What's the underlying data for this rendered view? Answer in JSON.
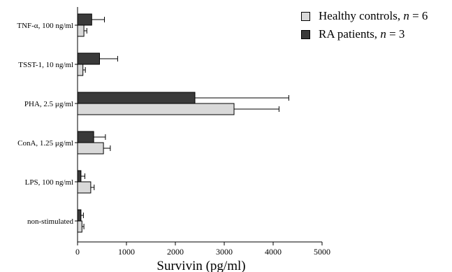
{
  "chart_data": {
    "type": "bar",
    "orientation": "horizontal",
    "categories": [
      "TNF-α, 100 ng/ml",
      "TSST-1, 10 ng/ml",
      "PHA, 2.5 μg/ml",
      "ConA, 1.25 μg/ml",
      "LPS, 100 ng/ml",
      "non-stimulated"
    ],
    "series": [
      {
        "name": "RA patients, n = 3",
        "label_prefix": "RA patients, ",
        "label_var": "n",
        "label_suffix": " = 3",
        "color": "#3a3a3a",
        "values": [
          290,
          450,
          2400,
          330,
          70,
          70
        ],
        "errors": [
          260,
          370,
          1920,
          240,
          80,
          50
        ]
      },
      {
        "name": "Healthy controls, n = 6",
        "label_prefix": "Healthy controls, ",
        "label_var": "n",
        "label_suffix": " = 6",
        "color": "#d9d9d9",
        "values": [
          130,
          110,
          3200,
          530,
          270,
          90
        ],
        "errors": [
          60,
          50,
          920,
          140,
          70,
          40
        ]
      }
    ],
    "xlabel": "Survivin (pg/ml)",
    "ylabel": "",
    "xlim": [
      0,
      5000
    ],
    "xticks": [
      0,
      1000,
      2000,
      3000,
      4000,
      5000
    ],
    "grid": false,
    "legend": "top-right"
  }
}
